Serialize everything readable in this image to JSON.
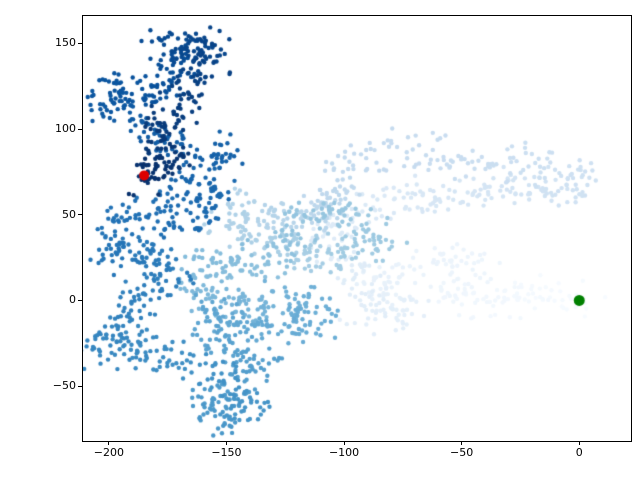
{
  "figure": {
    "background": "#ffffff",
    "kind": "matplotlib-scatter-figure"
  },
  "chart_data": {
    "type": "scatter",
    "title": "",
    "xlabel": "",
    "ylabel": "",
    "grid": false,
    "legend": null,
    "xlim": [
      -211,
      22
    ],
    "ylim": [
      -82,
      166
    ],
    "xtick_values": [
      -200,
      -150,
      -100,
      -50,
      0
    ],
    "xtick_labels": [
      "−200",
      "−150",
      "−100",
      "−50",
      "0"
    ],
    "ytick_values": [
      -50,
      0,
      50,
      100,
      150
    ],
    "ytick_labels": [
      "−50",
      "0",
      "50",
      "100",
      "150"
    ],
    "colormap": "Blues (light = earliest points, dark = latest points)",
    "colormap_stops": [
      [
        0.0,
        "#f7fbff"
      ],
      [
        0.125,
        "#deebf7"
      ],
      [
        0.25,
        "#c6dbef"
      ],
      [
        0.375,
        "#9ecae1"
      ],
      [
        0.5,
        "#6baed6"
      ],
      [
        0.625,
        "#4292c6"
      ],
      [
        0.75,
        "#2171b5"
      ],
      [
        0.875,
        "#08519c"
      ],
      [
        1.0,
        "#08306b"
      ]
    ],
    "point_radius": 2.2,
    "points_per_segment": 28,
    "jitter": 5,
    "walk_waypoints": [
      [
        0,
        0
      ],
      [
        -15,
        8
      ],
      [
        -35,
        -3
      ],
      [
        -55,
        5
      ],
      [
        -45,
        22
      ],
      [
        -70,
        18
      ],
      [
        -88,
        8
      ],
      [
        -72,
        -4
      ],
      [
        -90,
        -8
      ],
      [
        -95,
        18
      ],
      [
        -110,
        38
      ],
      [
        -90,
        52
      ],
      [
        -70,
        62
      ],
      [
        -50,
        58
      ],
      [
        -30,
        68
      ],
      [
        -12,
        63
      ],
      [
        4,
        72
      ],
      [
        -20,
        82
      ],
      [
        -45,
        78
      ],
      [
        -70,
        88
      ],
      [
        -95,
        83
      ],
      [
        -105,
        63
      ],
      [
        -108,
        52
      ],
      [
        -125,
        45
      ],
      [
        -140,
        55
      ],
      [
        -150,
        45
      ],
      [
        -130,
        35
      ],
      [
        -115,
        25
      ],
      [
        -100,
        30
      ],
      [
        -85,
        35
      ],
      [
        -95,
        48
      ],
      [
        -115,
        52
      ],
      [
        -125,
        30
      ],
      [
        -140,
        20
      ],
      [
        -155,
        25
      ],
      [
        -165,
        10
      ],
      [
        -150,
        0
      ],
      [
        -135,
        -5
      ],
      [
        -120,
        0
      ],
      [
        -110,
        -10
      ],
      [
        -125,
        -18
      ],
      [
        -145,
        -14
      ],
      [
        -160,
        -5
      ],
      [
        -150,
        -25
      ],
      [
        -135,
        -35
      ],
      [
        -145,
        -50
      ],
      [
        -158,
        -62
      ],
      [
        -150,
        -70
      ],
      [
        -136,
        -60
      ],
      [
        -155,
        -40
      ],
      [
        -175,
        -33
      ],
      [
        -190,
        -25
      ],
      [
        -203,
        -30
      ],
      [
        -196,
        -10
      ],
      [
        -185,
        5
      ],
      [
        -170,
        15
      ],
      [
        -185,
        30
      ],
      [
        -200,
        25
      ],
      [
        -196,
        45
      ],
      [
        -180,
        55
      ],
      [
        -165,
        45
      ],
      [
        -155,
        62
      ],
      [
        -170,
        70
      ],
      [
        -150,
        85
      ],
      [
        -172,
        92
      ],
      [
        -186,
        102
      ],
      [
        -203,
        113
      ],
      [
        -195,
        128
      ],
      [
        -180,
        120
      ],
      [
        -170,
        136
      ],
      [
        -176,
        150
      ],
      [
        -165,
        145
      ],
      [
        -156,
        149
      ],
      [
        -162,
        130
      ],
      [
        -170,
        113
      ],
      [
        -181,
        99
      ],
      [
        -172,
        86
      ],
      [
        -179,
        76
      ],
      [
        -185,
        73
      ]
    ],
    "start_marker": {
      "x": 0,
      "y": 0,
      "color": "#008000",
      "radius": 5.5
    },
    "end_marker": {
      "x": -185,
      "y": 73,
      "color": "#dd0000",
      "radius": 5.0
    }
  }
}
